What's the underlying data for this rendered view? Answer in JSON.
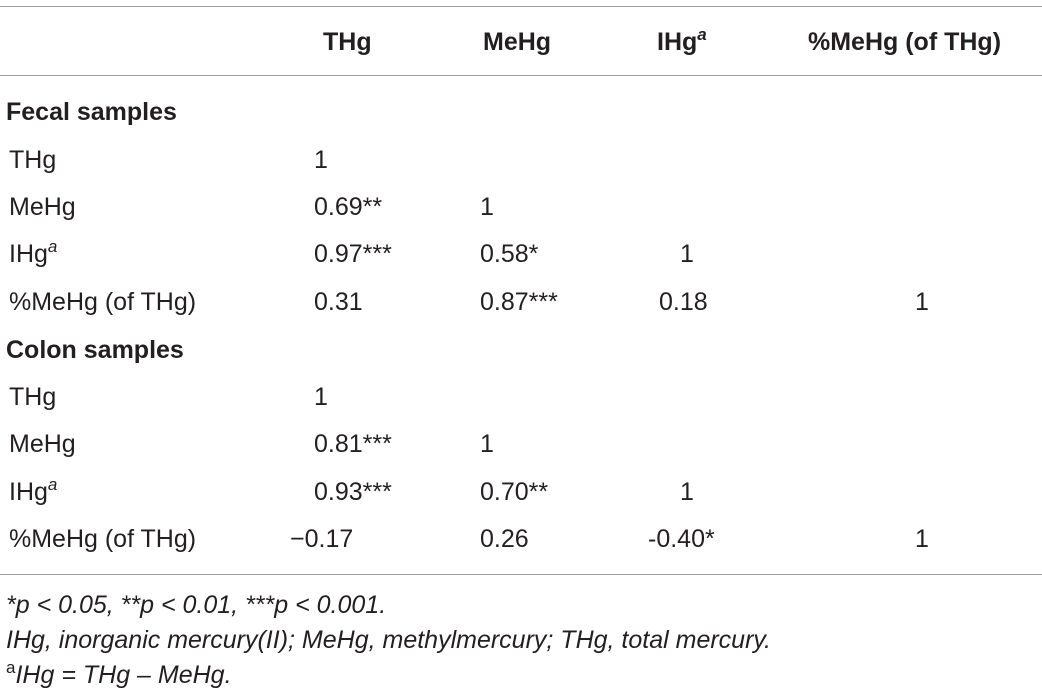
{
  "header": {
    "col1": "THg",
    "col2": "MeHg",
    "col3": "IHg",
    "col3_sup": "a",
    "col4": "%MeHg (of THg)"
  },
  "sections": [
    {
      "title": "Fecal samples",
      "rows": [
        {
          "label": "THg",
          "label_sup": "",
          "c1": "1",
          "c2": "",
          "c3": "",
          "c4": ""
        },
        {
          "label": "MeHg",
          "label_sup": "",
          "c1": "0.69**",
          "c2": "1",
          "c3": "",
          "c4": ""
        },
        {
          "label": "IHg",
          "label_sup": "a",
          "c1": "0.97***",
          "c2": "0.58*",
          "c3": "1",
          "c4": ""
        },
        {
          "label": "%MeHg (of THg)",
          "label_sup": "",
          "c1": "0.31",
          "c2": "0.87***",
          "c3": "0.18",
          "c4": "1"
        }
      ]
    },
    {
      "title": "Colon samples",
      "rows": [
        {
          "label": "THg",
          "label_sup": "",
          "c1": "1",
          "c2": "",
          "c3": "",
          "c4": ""
        },
        {
          "label": "MeHg",
          "label_sup": "",
          "c1": "0.81***",
          "c2": "1",
          "c3": "",
          "c4": ""
        },
        {
          "label": "IHg",
          "label_sup": "a",
          "c1": "0.93***",
          "c2": "0.70**",
          "c3": "1",
          "c4": ""
        },
        {
          "label": "%MeHg (of THg)",
          "label_sup": "",
          "c1": "−0.17",
          "c2": "0.26",
          "c3": "-0.40*",
          "c4": "1"
        }
      ]
    }
  ],
  "footnotes": {
    "significance": "*p < 0.05, **p < 0.01, ***p < 0.001.",
    "abbreviations": "IHg, inorganic mercury(II); MeHg, methylmercury; THg, total mercury.",
    "formula_marker": "a",
    "formula": "IHg = THg – MeHg."
  }
}
